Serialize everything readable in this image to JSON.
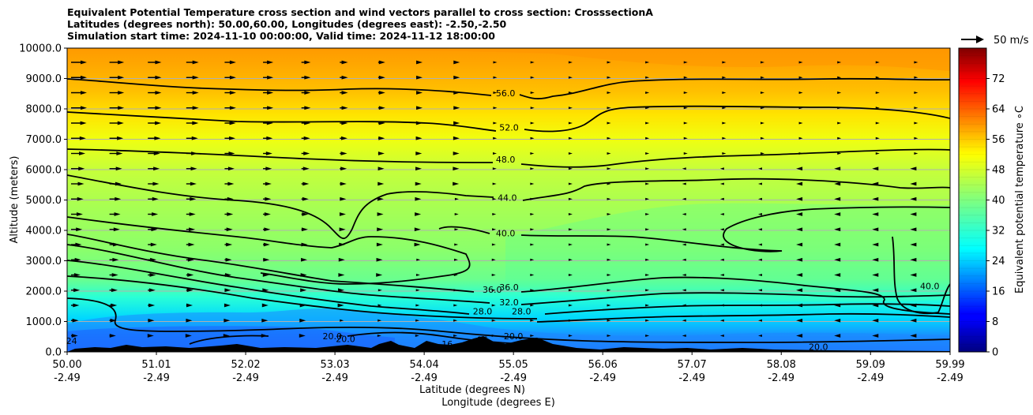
{
  "title_lines": [
    "Equivalent Potential Temperature cross section and wind vectors parallel to cross section: CrosssectionA",
    "Latitudes (degrees north): 50.00,60.00, Longitudes (degrees east): -2.50,-2.50",
    "Simulation start time: 2024-11-10 00:00:00, Valid time: 2024-11-12 18:00:00"
  ],
  "chart_data": {
    "type": "heatmap",
    "subtype": "filled contour cross section with wind vectors",
    "title": "Equivalent Potential Temperature cross section and wind vectors parallel to cross section: CrosssectionA",
    "xlabel_1": "Latitude (degrees N)",
    "xlabel_2": "Longitude (degrees E)",
    "ylabel": "Altitude (meters)",
    "x_lat_ticks": [
      "50.00",
      "51.01",
      "52.02",
      "53.03",
      "54.04",
      "55.05",
      "56.06",
      "57.07",
      "58.08",
      "59.09",
      "59.99"
    ],
    "x_lon_ticks": [
      "-2.49",
      "-2.49",
      "-2.49",
      "-2.49",
      "-2.49",
      "-2.49",
      "-2.49",
      "-2.49",
      "-2.49",
      "-2.49",
      "-2.49"
    ],
    "y_ticks": [
      "0.0",
      "1000.0",
      "2000.0",
      "3000.0",
      "4000.0",
      "5000.0",
      "6000.0",
      "7000.0",
      "8000.0",
      "9000.0",
      "10000.0"
    ],
    "ylim": [
      0,
      10000
    ],
    "xlim": [
      50.0,
      59.99
    ],
    "grid": "horizontal",
    "colorbar": {
      "label": "Equivalent potential temperature $^\\circ$C",
      "label_text": "Equivalent potential temperature",
      "label_unit": "∘C",
      "range": [
        0,
        80
      ],
      "ticks": [
        "0",
        "8",
        "16",
        "24",
        "32",
        "40",
        "48",
        "56",
        "64",
        "72"
      ],
      "levels": 40
    },
    "quiver_key": "50 m/s",
    "contour_labels": [
      {
        "text": "56.0",
        "lat": 54.96,
        "alt": 8420
      },
      {
        "text": "52.0",
        "lat": 55.0,
        "alt": 7280
      },
      {
        "text": "48.0",
        "lat": 54.96,
        "alt": 6240
      },
      {
        "text": "44.0",
        "lat": 54.98,
        "alt": 4980
      },
      {
        "text": "40.0",
        "lat": 54.96,
        "alt": 3810
      },
      {
        "text": "36.0",
        "lat": 54.81,
        "alt": 1950
      },
      {
        "text": "36.0",
        "lat": 55.0,
        "alt": 2030
      },
      {
        "text": "32.0",
        "lat": 55.0,
        "alt": 1530
      },
      {
        "text": "28.0",
        "lat": 54.7,
        "alt": 1230
      },
      {
        "text": "28.0",
        "lat": 55.14,
        "alt": 1230
      },
      {
        "text": "40.0",
        "lat": 59.76,
        "alt": 2070
      },
      {
        "text": "20.0",
        "lat": 53.0,
        "alt": 420
      },
      {
        "text": "20.0",
        "lat": 53.15,
        "alt": 320
      },
      {
        "text": "20.0",
        "lat": 55.05,
        "alt": 410
      },
      {
        "text": "20.0",
        "lat": 58.5,
        "alt": 60
      },
      {
        "text": "24",
        "lat": 50.05,
        "alt": 260
      },
      {
        "text": "16",
        "lat": 54.7,
        "alt": 300
      },
      {
        "text": "16",
        "lat": 54.3,
        "alt": 150
      }
    ],
    "colors": {
      "cmap": "jet",
      "contour": "#000000",
      "terrain": "#000000",
      "grid": "#b0b0b0"
    }
  }
}
